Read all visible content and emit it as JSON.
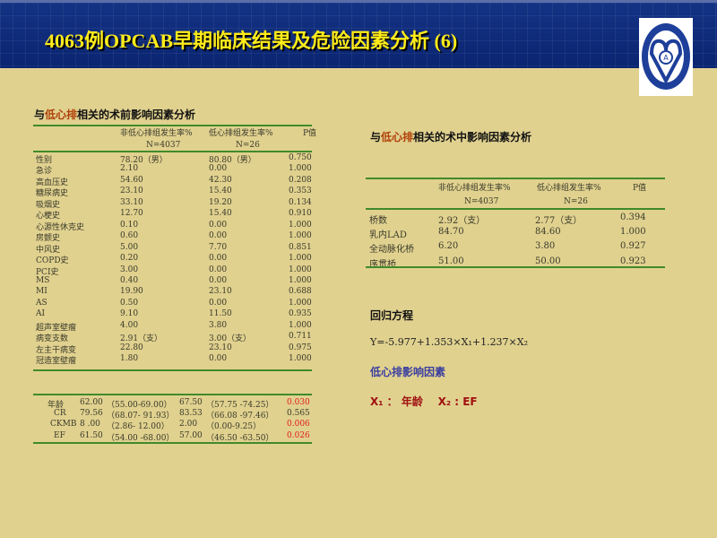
{
  "title": "4063例OPCAB早期临床结果及危险因素分析 (6)",
  "logo": {
    "text": "BEIJING ANZHEN HOSPITAL",
    "icon": "hospital-logo"
  },
  "preop": {
    "heading_pre": "与",
    "heading_red": "低心排",
    "heading_post": "相关的术前影响因素分析",
    "headers": [
      "非低心排组发生率%",
      "N=4037",
      "低心排组发生率%",
      "N=26",
      "P值"
    ],
    "rows": [
      [
        "性别",
        "78.20（男）",
        "80.80（男）",
        "0.750"
      ],
      [
        "急诊",
        "2.10",
        "0.00",
        "1.000"
      ],
      [
        "高血压史",
        "54.60",
        "42.30",
        "0.208"
      ],
      [
        "糖尿病史",
        "23.10",
        "15.40",
        "0.353"
      ],
      [
        "吸烟史",
        "33.10",
        "19.20",
        "0.134"
      ],
      [
        "心梗史",
        "12.70",
        "15.40",
        "0.910"
      ],
      [
        "心源性休克史",
        "0.10",
        "0.00",
        "1.000"
      ],
      [
        "房颤史",
        "0.60",
        "0.00",
        "1.000"
      ],
      [
        "中风史",
        "5.00",
        "7.70",
        "0.851"
      ],
      [
        "COPD史",
        "0.20",
        "0.00",
        "1.000"
      ],
      [
        "PCI史",
        "3.00",
        "0.00",
        "1.000"
      ],
      [
        "MS",
        "0.40",
        "0.00",
        "1.000"
      ],
      [
        "MI",
        "19.90",
        "23.10",
        "0.688"
      ],
      [
        "AS",
        "0.50",
        "0.00",
        "1.000"
      ],
      [
        "AI",
        "9.10",
        "11.50",
        "0.935"
      ],
      [
        "超声室壁瘤",
        "4.00",
        "3.80",
        "1.000"
      ],
      [
        "病变支数",
        "2.91（支）",
        "3.00（支）",
        "0.711"
      ],
      [
        "左主干病变",
        "22.80",
        "23.10",
        "0.975"
      ],
      [
        "冠造室壁瘤",
        "1.80",
        "0.00",
        "1.000"
      ]
    ],
    "cont_rows": [
      [
        "年龄",
        "62.00",
        "（55.00-69.00）",
        "67.50",
        "（57.75 -74.25）",
        "0.030",
        true
      ],
      [
        "CR",
        "79.56",
        "（68.07- 91.93）",
        "83.53",
        "（66.08 -97.46）",
        "0.565",
        false
      ],
      [
        "CKMB",
        "8 .00",
        "（2.86- 12.00）",
        "2.00",
        "（0.00-9.25）",
        "0.006",
        true
      ],
      [
        "EF",
        "61.50",
        "（54.00 -68.00）",
        "57.00",
        "（46.50 -63.50）",
        "0.026",
        true
      ]
    ]
  },
  "intraop": {
    "heading_pre": "与",
    "heading_red": "低心排",
    "heading_post": "相关的术中影响因素分析",
    "headers": [
      "非低心排组发生率%",
      "N=4037",
      "低心排组发生率%",
      "N=26",
      "P值"
    ],
    "rows": [
      [
        "桥数",
        "2.92（支）",
        "2.77（支）",
        "0.394"
      ],
      [
        "乳内LAD",
        "84.70",
        "84.60",
        "1.000"
      ],
      [
        "全动脉化桥",
        "6.20",
        "3.80",
        "0.927"
      ],
      [
        "序贯桥",
        "51.00",
        "50.00",
        "0.923"
      ]
    ]
  },
  "regression": {
    "heading": "回归方程",
    "equation": "Y=-5.977+1.353×X₁+1.237×X₂",
    "factors_heading": "低心排影响因素",
    "factors": "X₁ ： 年龄    X₂ : EF"
  },
  "colors": {
    "header_bg": "#0a2470",
    "title": "#ffec1a",
    "slide_bg": "#e0d18f",
    "rule": "#3f8a2a",
    "significant": "#e02020"
  }
}
